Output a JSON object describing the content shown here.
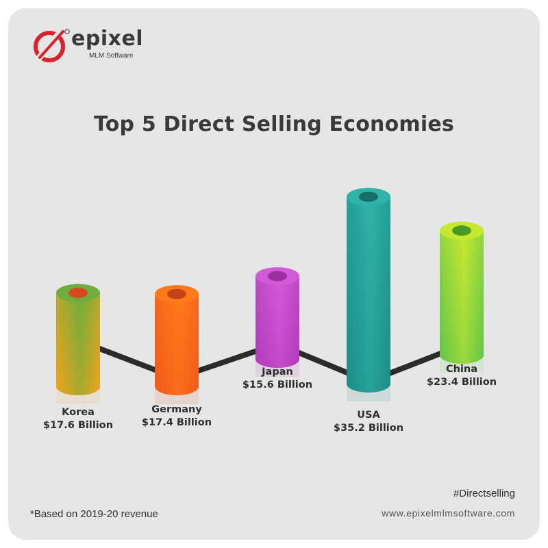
{
  "brand": {
    "name": "epixel",
    "tagline": "MLM Software",
    "colors": {
      "red": "#d8232a",
      "text": "#3a3a3a"
    }
  },
  "title": "Top 5 Direct Selling Economies",
  "footnote": "*Based on 2019-20 revenue",
  "hashtag": "#Directselling",
  "website": "www.epixelmlmsoftware.com",
  "chart_data": {
    "type": "bar",
    "title": "Top 5 Direct Selling Economies",
    "unit": "Billion USD",
    "categories": [
      "Korea",
      "Germany",
      "Japan",
      "USA",
      "China"
    ],
    "values": [
      17.6,
      17.4,
      15.6,
      35.2,
      23.4
    ],
    "labels": [
      "$17.6 Billion",
      "$17.4 Billion",
      "$15.6 Billion",
      "$35.2 Billion",
      "$23.4 Billion"
    ],
    "grid": false,
    "legend": "none",
    "colors": [
      {
        "top": "#6fae3e",
        "bottom": "#f2a21c",
        "inner": "#d64a1d"
      },
      {
        "top": "#ff7a1a",
        "bottom": "#f05a1c",
        "inner": "#c6421a"
      },
      {
        "top": "#d35ad6",
        "bottom": "#b03ab8",
        "inner": "#9a2fa1"
      },
      {
        "top": "#2fb3a8",
        "bottom": "#1c8d86",
        "inner": "#166e68"
      },
      {
        "top": "#c7e830",
        "bottom": "#62c54a",
        "inner": "#4b9a24"
      }
    ]
  }
}
